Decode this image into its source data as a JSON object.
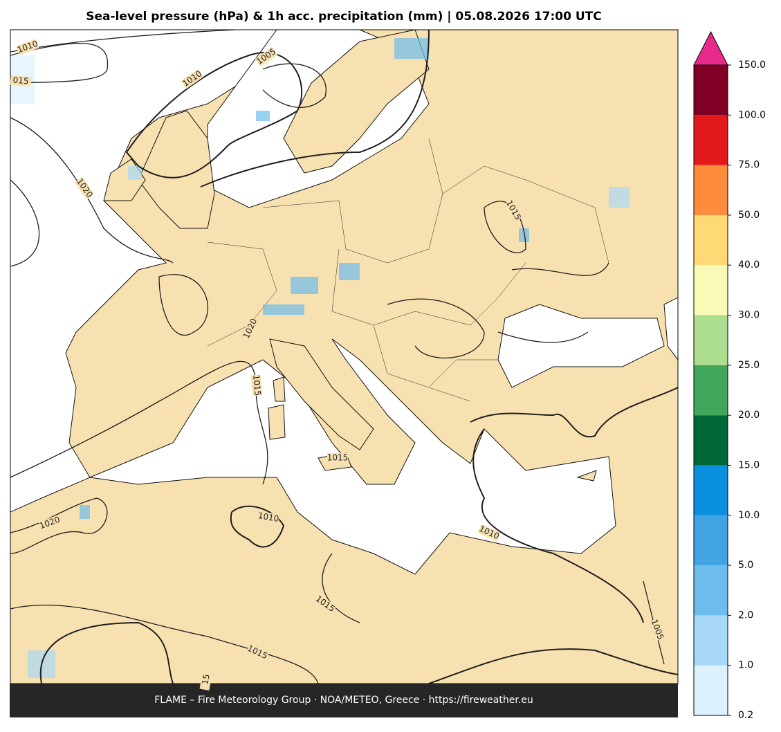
{
  "title": "Sea-level pressure (hPa) & 1h acc. precipitation (mm)  |  05.08.2026 17:00 UTC",
  "colorbar": {
    "ticks": [
      0.2,
      {
        "value": 1,
        "label": "1.0"
      },
      {
        "value": 2,
        "label": "2.0"
      },
      {
        "value": 5,
        "label": "5.0"
      },
      {
        "value": 10,
        "label": "10.0"
      },
      {
        "value": 15,
        "label": "15.0"
      },
      {
        "value": 20,
        "label": "20.0"
      },
      {
        "value": 25,
        "label": "25.0"
      },
      {
        "value": 30,
        "label": "30.0"
      },
      {
        "value": 40,
        "label": "40.0"
      },
      {
        "value": 50,
        "label": "50.0"
      },
      {
        "value": 75,
        "label": "75.0"
      },
      {
        "value": 100,
        "label": "100.0"
      },
      {
        "value": 150,
        "label": "150.0"
      }
    ],
    "colors": [
      "#ddf1fd",
      "#a8d8f7",
      "#6dbcec",
      "#42a3e3",
      "#0b8fdf",
      "#006837",
      "#41a85b",
      "#addd8e",
      "#f8fbb6",
      "#fed976",
      "#fd8d3c",
      "#e31a1c",
      "#800026"
    ],
    "extend_color": "#e7298a"
  },
  "contour_labels": [
    "1010",
    "1005",
    "015",
    "1010",
    "1020",
    "1015",
    "1020",
    "1015",
    "1015",
    "1020",
    "1010",
    "1010",
    "1015",
    "1015",
    "1005",
    "15"
  ],
  "footer": "FLAME – Fire Meteorology Group · NOA/METEO, Greece · https://fireweather.eu"
}
